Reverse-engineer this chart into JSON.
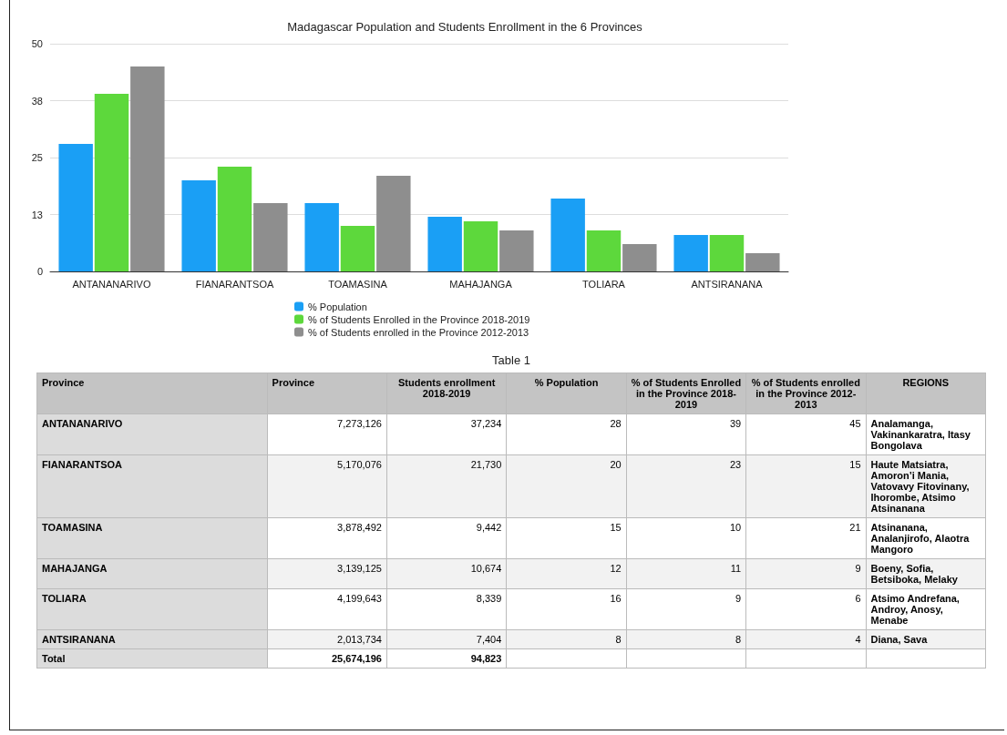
{
  "chart_data": [
    {
      "type": "bar",
      "title": "Madagascar Population and Students Enrollment in the 6 Provinces",
      "categories": [
        "ANTANANARIVO",
        "FIANARANTSOA",
        "TOAMASINA",
        "MAHAJANGA",
        "TOLIARA",
        "ANTSIRANANA"
      ],
      "series": [
        {
          "name": "% Population",
          "color": "#1a9ff5",
          "values": [
            28,
            20,
            15,
            12,
            16,
            8
          ]
        },
        {
          "name": "% of Students Enrolled in the Province 2018-2019",
          "color": "#5dd83c",
          "values": [
            39,
            23,
            10,
            11,
            9,
            8
          ]
        },
        {
          "name": "% of Students enrolled in the Province 2012-2013",
          "color": "#8e8e8e",
          "values": [
            45,
            15,
            21,
            9,
            6,
            4
          ]
        }
      ],
      "ylim": [
        0,
        50
      ],
      "yticks": [
        0,
        {
          "value": 12.5,
          "label": "13"
        },
        25,
        {
          "value": 37.5,
          "label": "38"
        },
        50
      ],
      "grid": "y",
      "legend": "bottom"
    },
    {
      "type": "other",
      "title": "Table 1",
      "categories": [
        "Province",
        "Province",
        "Students enrollment 2018-2019",
        "% Population",
        "% of Students Enrolled in the Province 2018-2019",
        "% of Students enrolled in the Province 2012-2013",
        "REGIONS"
      ],
      "cell_labels": [
        [
          "ANTANANARIVO",
          "7,273,126",
          "37,234",
          "28",
          "39",
          "45",
          "Analamanga, Vakinankaratra, Itasy Bongolava"
        ],
        [
          "FIANARANTSOA",
          "5,170,076",
          "21,730",
          "20",
          "23",
          "15",
          "Haute Matsiatra, Amoron’i Mania, Vatovavy Fitovinany, Ihorombe, Atsimo Atsinanana"
        ],
        [
          "TOAMASINA",
          "3,878,492",
          "9,442",
          "15",
          "10",
          "21",
          "Atsinanana, Analanjirofo, Alaotra Mangoro"
        ],
        [
          "MAHAJANGA",
          "3,139,125",
          "10,674",
          "12",
          "11",
          "9",
          "Boeny, Sofia, Betsiboka, Melaky"
        ],
        [
          "TOLIARA",
          "4,199,643",
          "8,339",
          "16",
          "9",
          "6",
          "Atsimo Andrefana, Androy, Anosy, Menabe"
        ],
        [
          "ANTSIRANANA",
          "2,013,734",
          "7,404",
          "8",
          "8",
          "4",
          "Diana, Sava"
        ],
        [
          "Total",
          "25,674,196",
          "94,823",
          null,
          null,
          null,
          null
        ]
      ]
    }
  ]
}
